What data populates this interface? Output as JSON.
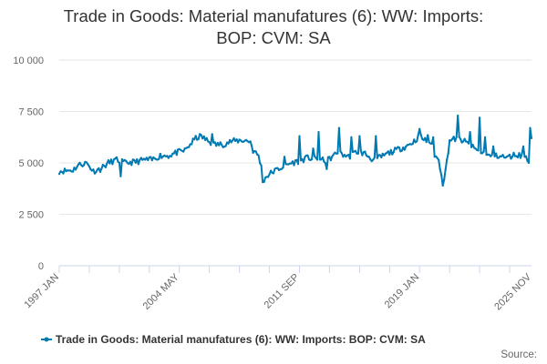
{
  "chart_data": {
    "type": "line",
    "title": "Trade in Goods: Material manufatures (6): WW: Imports: BOP: CVM: SA",
    "title_lines": [
      "Trade in Goods: Material manufatures (6): WW: Imports:",
      "BOP: CVM: SA"
    ],
    "xlabel": "",
    "ylabel": "",
    "ylim": [
      0,
      10000
    ],
    "yticks": [
      0,
      2500,
      5000,
      7500,
      10000
    ],
    "ytick_labels": [
      "0",
      "2 500",
      "5 000",
      "7 500",
      "10 000"
    ],
    "xrange": [
      "1997 JAN",
      "2025 NOV"
    ],
    "xtick_labels": [
      "1997 JAN",
      "2004 MAY",
      "2011 SEP",
      "2019 JAN",
      "2025 NOV"
    ],
    "xtick_months": [
      0,
      88,
      176,
      264,
      346
    ],
    "grid": "horizontal",
    "legend_position": "bottom",
    "series": [
      {
        "name": "Trade in Goods: Material manufatures (6): WW: Imports: BOP: CVM: SA",
        "color": "#007ab3",
        "anchors": [
          [
            0,
            4600
          ],
          [
            10,
            4650
          ],
          [
            14,
            4900
          ],
          [
            20,
            5000
          ],
          [
            25,
            4600
          ],
          [
            30,
            4700
          ],
          [
            36,
            5000
          ],
          [
            42,
            5150
          ],
          [
            48,
            5000
          ],
          [
            56,
            5050
          ],
          [
            62,
            5150
          ],
          [
            68,
            5150
          ],
          [
            74,
            5350
          ],
          [
            80,
            5350
          ],
          [
            86,
            5500
          ],
          [
            92,
            5600
          ],
          [
            100,
            6200
          ],
          [
            104,
            6300
          ],
          [
            112,
            5900
          ],
          [
            120,
            5900
          ],
          [
            126,
            6050
          ],
          [
            134,
            6100
          ],
          [
            140,
            6050
          ],
          [
            142,
            5600
          ],
          [
            146,
            5350
          ],
          [
            148,
            4800
          ],
          [
            149,
            4100
          ],
          [
            152,
            4350
          ],
          [
            156,
            4550
          ],
          [
            162,
            4750
          ],
          [
            168,
            4950
          ],
          [
            176,
            5100
          ],
          [
            182,
            5250
          ],
          [
            190,
            5150
          ],
          [
            196,
            5100
          ],
          [
            204,
            5500
          ],
          [
            212,
            5300
          ],
          [
            218,
            5550
          ],
          [
            224,
            5450
          ],
          [
            230,
            5150
          ],
          [
            236,
            5300
          ],
          [
            242,
            5500
          ],
          [
            248,
            5650
          ],
          [
            254,
            5800
          ],
          [
            260,
            6050
          ],
          [
            264,
            6300
          ],
          [
            268,
            6100
          ],
          [
            272,
            6000
          ],
          [
            275,
            5400
          ],
          [
            278,
            5100
          ],
          [
            280,
            4500
          ],
          [
            281,
            4000
          ],
          [
            283,
            4600
          ],
          [
            286,
            6100
          ],
          [
            292,
            6200
          ],
          [
            298,
            6000
          ],
          [
            304,
            5700
          ],
          [
            310,
            5500
          ],
          [
            316,
            5300
          ],
          [
            322,
            5350
          ],
          [
            328,
            5250
          ],
          [
            334,
            5400
          ],
          [
            340,
            5350
          ],
          [
            344,
            5200
          ],
          [
            346,
            6300
          ]
        ],
        "spikes": [
          [
            45,
            4350
          ],
          [
            112,
            6400
          ],
          [
            165,
            5300
          ],
          [
            176,
            6300
          ],
          [
            186,
            5700
          ],
          [
            190,
            6500
          ],
          [
            196,
            4700
          ],
          [
            205,
            6700
          ],
          [
            214,
            6250
          ],
          [
            220,
            6300
          ],
          [
            232,
            6300
          ],
          [
            264,
            6650
          ],
          [
            270,
            6350
          ],
          [
            274,
            6250
          ],
          [
            292,
            7300
          ],
          [
            301,
            6500
          ],
          [
            308,
            7200
          ],
          [
            312,
            6250
          ],
          [
            318,
            5800
          ],
          [
            340,
            5800
          ],
          [
            344,
            5000
          ],
          [
            345,
            6700
          ]
        ]
      }
    ],
    "source_label": "Source:"
  }
}
